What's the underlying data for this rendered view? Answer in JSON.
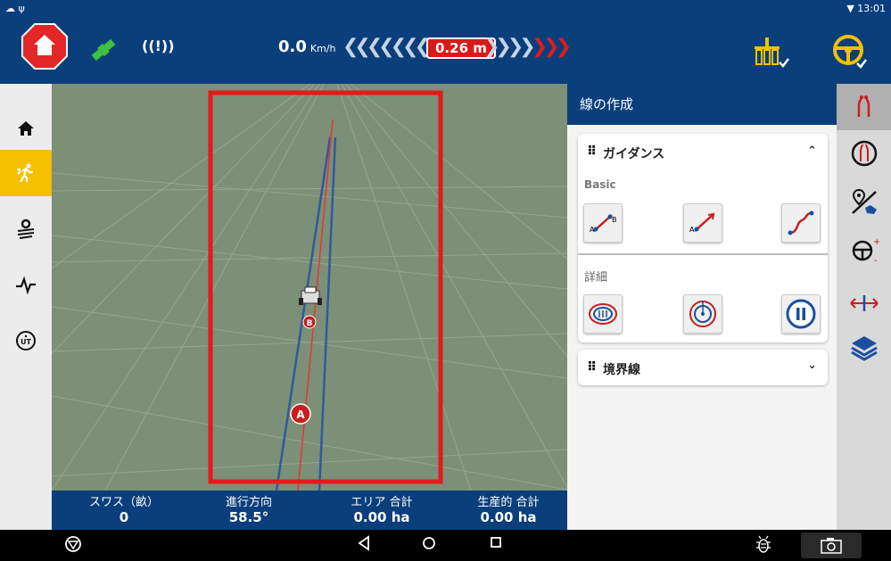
{
  "statusbar": {
    "time": "13:01",
    "left_icons": "☁ ψ"
  },
  "topbar": {
    "signal": "((!))",
    "speed_value": "0.0",
    "speed_unit": "Km/h",
    "offset": "0.26 m",
    "chevrons_left": "❮❮❮❮❮❮❮",
    "chevrons_right_white": "❯❯❯❯",
    "chevrons_right_red": "❯❯❯"
  },
  "leftnav": {
    "items": [
      {
        "icon": "home-icon",
        "glyph": "⌂"
      },
      {
        "icon": "runner-icon",
        "glyph": "🏃"
      },
      {
        "icon": "field-settings-icon",
        "glyph": "⚙"
      },
      {
        "icon": "pulse-icon",
        "glyph": "∿"
      },
      {
        "icon": "ut-icon",
        "glyph": "UT"
      }
    ]
  },
  "map": {
    "marker_a": "A",
    "marker_b": "B"
  },
  "stats": [
    {
      "label": "スワス（畝）",
      "value": "0"
    },
    {
      "label": "進行方向",
      "value": "58.5°"
    },
    {
      "label": "エリア 合計",
      "value": "0.00 ha"
    },
    {
      "label": "生産的 合計",
      "value": "0.00 ha"
    }
  ],
  "panel": {
    "title": "線の作成",
    "guidance": {
      "title": "ガイダンス",
      "basic_label": "Basic",
      "detail_label": "詳細",
      "basic_buttons": [
        "ab-line-icon",
        "a-plus-heading-icon",
        "curve-line-icon"
      ],
      "detail_buttons": [
        "pivot-field-icon",
        "center-pivot-icon",
        "pause-icon"
      ]
    },
    "boundary": {
      "title": "境界線"
    }
  },
  "colors": {
    "brand_blue": "#0a3f7c",
    "accent_yellow": "#f5c000",
    "alert_red": "#d91a1a",
    "map_green": "#7c8f77"
  }
}
